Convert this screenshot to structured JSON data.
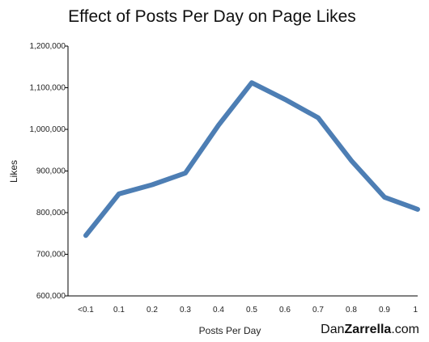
{
  "chart_data": {
    "type": "line",
    "title": "Effect of Posts Per Day on Page Likes",
    "xlabel": "Posts Per Day",
    "ylabel": "Likes",
    "categories": [
      "<0.1",
      "0.1",
      "0.2",
      "0.3",
      "0.4",
      "0.5",
      "0.6",
      "0.7",
      "0.8",
      "0.9",
      "1"
    ],
    "series": [
      {
        "values": [
          745000,
          845000,
          867000,
          895000,
          1010000,
          1112000,
          1072000,
          1028000,
          925000,
          837000,
          808000
        ]
      }
    ],
    "ylim": [
      600000,
      1200000
    ],
    "yticks": [
      600000,
      700000,
      800000,
      900000,
      1000000,
      1100000,
      1200000
    ],
    "ytick_labels": [
      "600,000",
      "700,000",
      "800,000",
      "900,000",
      "1,000,000",
      "1,100,000",
      "1,200,000"
    ],
    "grid": false,
    "line_color": "#4d7eb4"
  },
  "brand": {
    "prefix": "Dan",
    "bold": "Zarrella",
    "suffix": ".com"
  }
}
